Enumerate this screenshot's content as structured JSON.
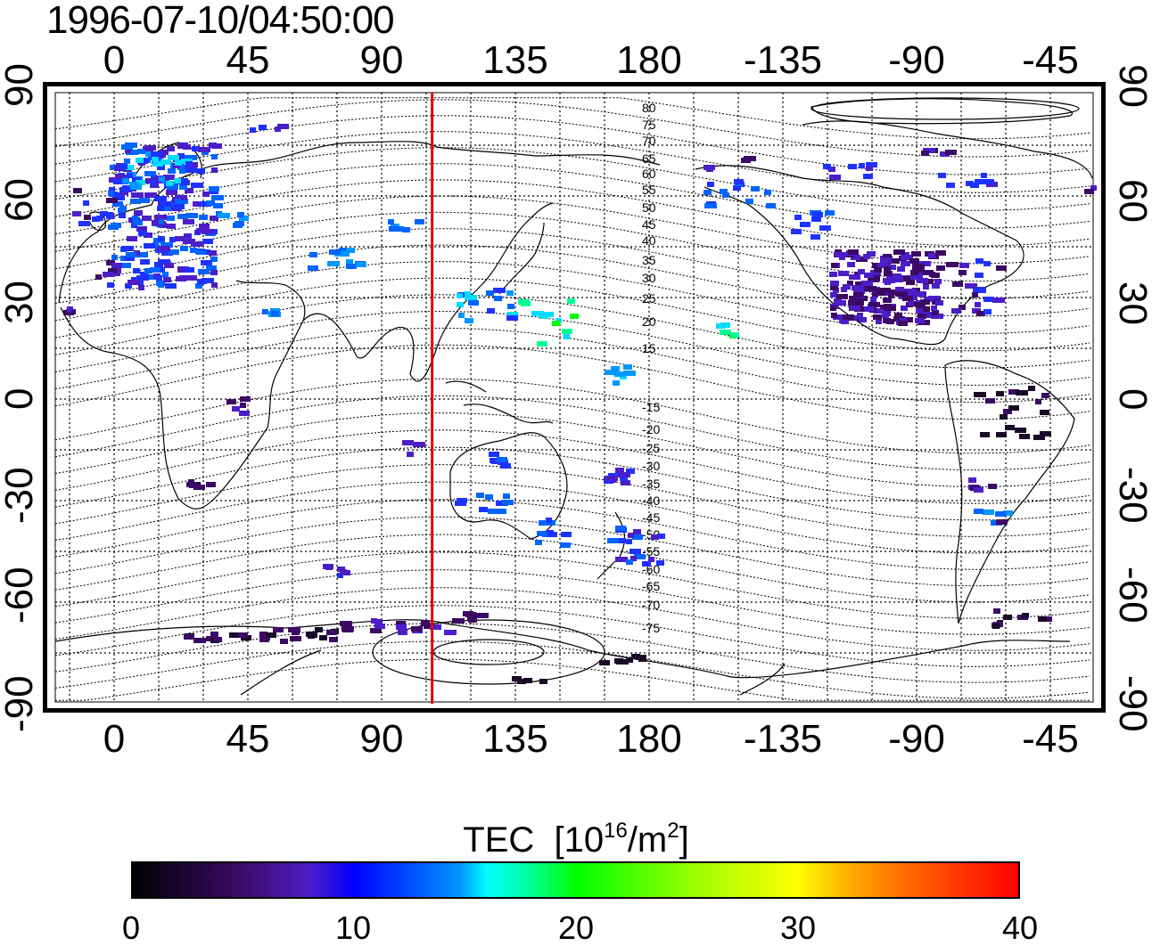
{
  "title": "1996-07-10/04:50:00",
  "lon_ticks": [
    "0",
    "45",
    "90",
    "135",
    "180",
    "-135",
    "-90",
    "-45"
  ],
  "lat_ticks": [
    "90",
    "60",
    "30",
    "0",
    "-30",
    "-60",
    "-90"
  ],
  "contour_labels": [
    "80",
    "75",
    "70",
    "65",
    "60",
    "55",
    "50",
    "45",
    "40",
    "35",
    "30",
    "25",
    "20",
    "15",
    "-15",
    "-20",
    "-25",
    "-30",
    "-35",
    "-40",
    "-45",
    "-50",
    "-55",
    "-60",
    "-65",
    "-70",
    "-75"
  ],
  "colorbar": {
    "title": "TEC",
    "units_base": "10",
    "units_exp": "16",
    "units_tail": "/m",
    "units_sq": "2",
    "ticks": [
      "0",
      "10",
      "20",
      "30",
      "40"
    ],
    "range": [
      0,
      40
    ]
  },
  "terminator_lon": 107,
  "colors": {
    "terminator": "#e00000",
    "frame": "#000000"
  }
}
